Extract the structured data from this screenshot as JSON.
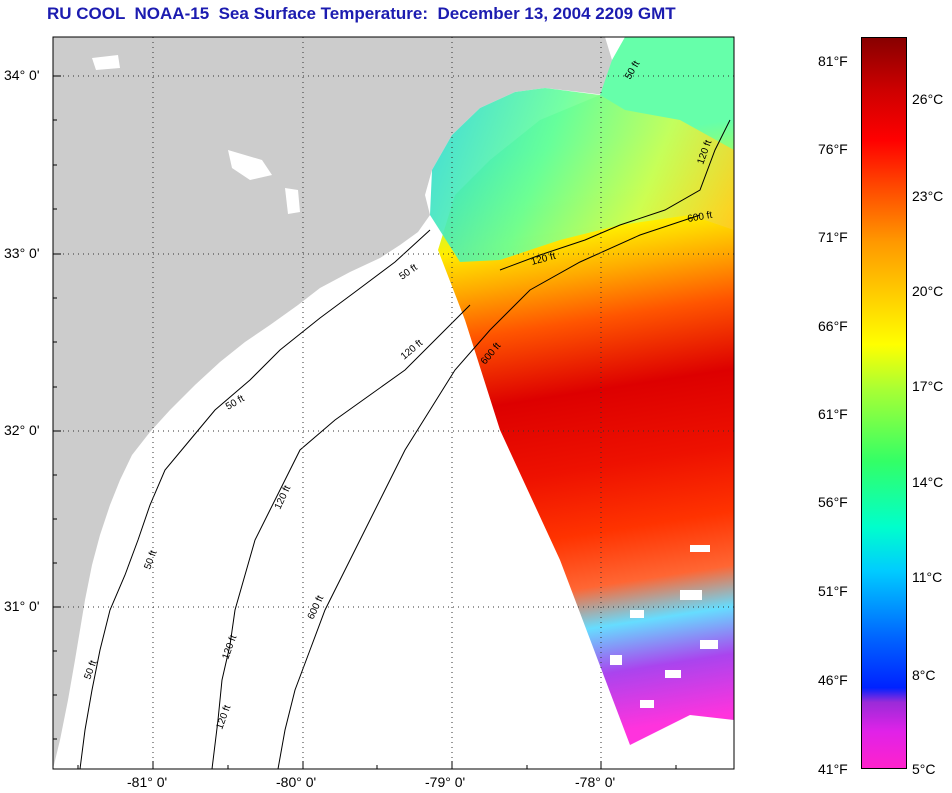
{
  "title": "RU COOL  NOAA-15  Sea Surface Temperature:  December 13, 2004 2209 GMT",
  "latitude_labels": [
    "34° 0'",
    "33° 0'",
    "32° 0'",
    "31° 0'"
  ],
  "longitude_labels": [
    "-81° 0'",
    "-80° 0'",
    "-79° 0'",
    "-78° 0'"
  ],
  "depth_contours": [
    "50 ft",
    "120 ft",
    "600 ft"
  ],
  "colorbar": {
    "fahrenheit_labels": [
      "81°F",
      "76°F",
      "71°F",
      "66°F",
      "61°F",
      "56°F",
      "51°F",
      "46°F",
      "41°F"
    ],
    "celsius_labels": [
      "26°C",
      "23°C",
      "20°C",
      "17°C",
      "14°C",
      "11°C",
      "8°C",
      "5°C"
    ],
    "min_fahrenheit": 41,
    "max_fahrenheit": 84
  },
  "colors": {
    "title": "#1c1cb0",
    "land": "#cccccc",
    "ocean_cloud": "#ffffff"
  }
}
